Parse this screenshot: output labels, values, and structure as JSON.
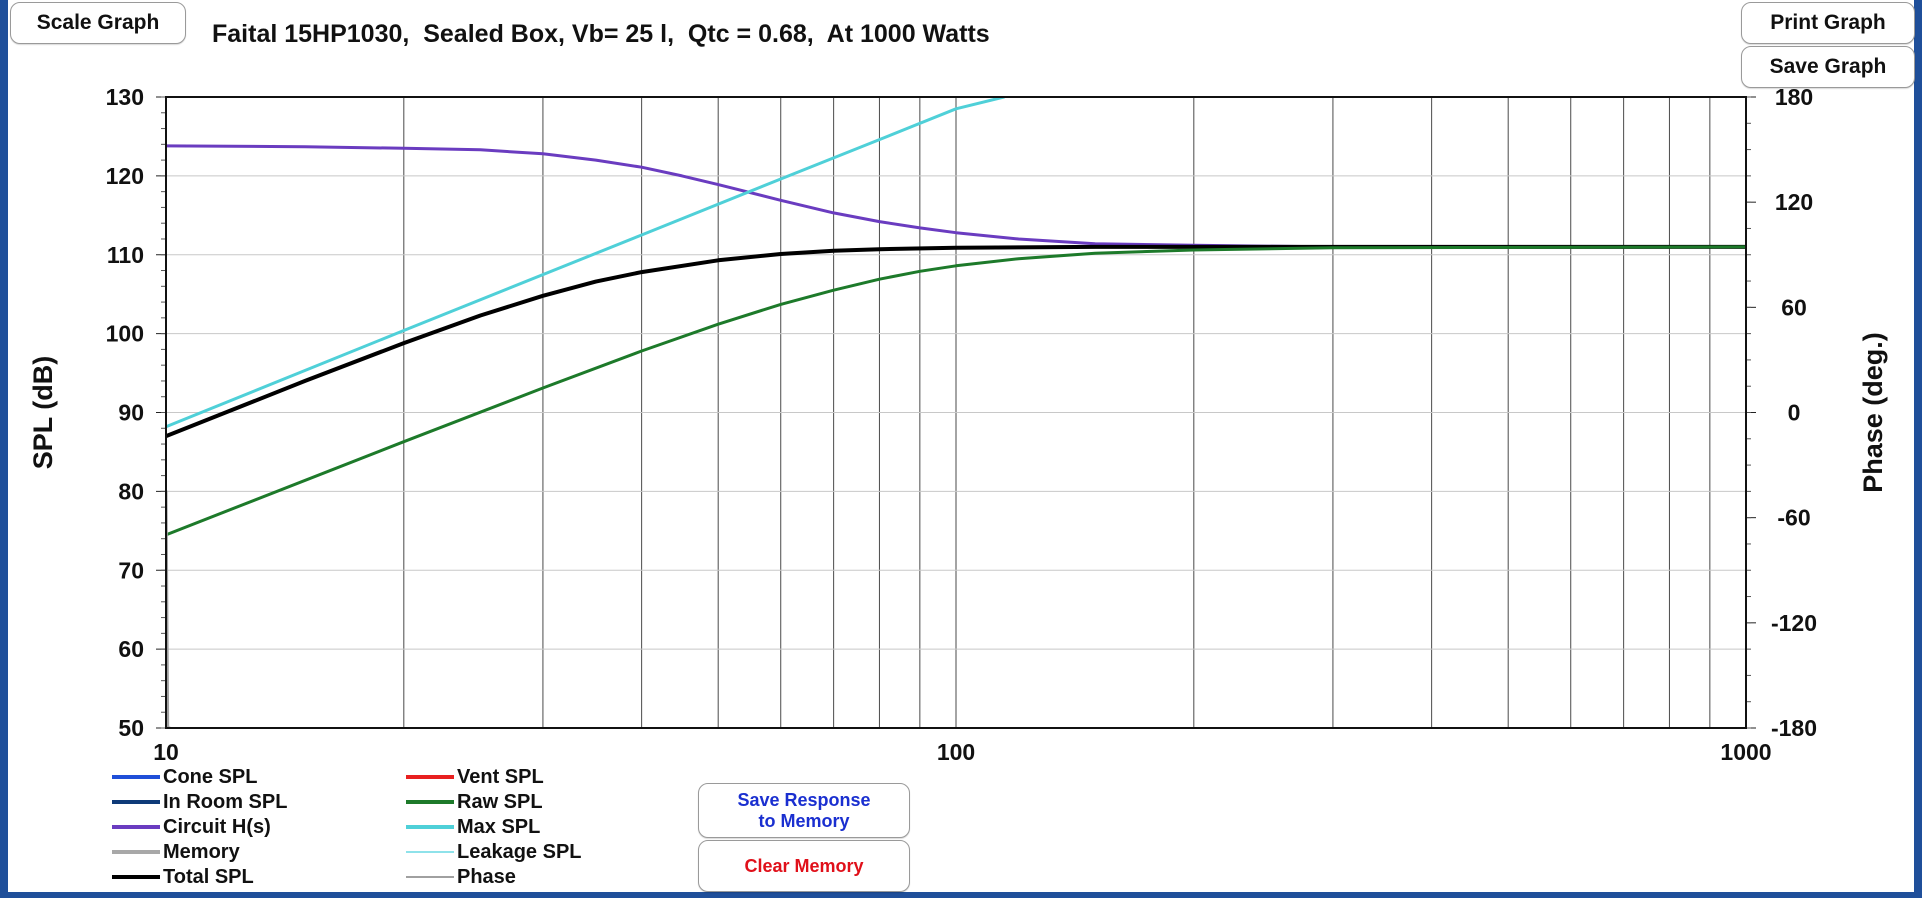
{
  "toolbar": {
    "scale_label": "Scale Graph",
    "print_label": "Print Graph",
    "save_label": "Save Graph",
    "save_response_line1": "Save Response",
    "save_response_line2": "to Memory",
    "clear_memory_label": "Clear Memory"
  },
  "chart_data": {
    "type": "line",
    "title": "Faital 15HP1030,  Sealed Box, Vb= 25 l,  Qtc = 0.68,  At 1000 Watts",
    "ylabel": "SPL (dB)",
    "y2label": "Phase (deg.)",
    "xscale": "log",
    "xlim": [
      10,
      1000
    ],
    "ylim": [
      50,
      130
    ],
    "y2lim": [
      -180,
      180
    ],
    "xticks": [
      {
        "value": 10,
        "label": "10"
      },
      {
        "value": 100,
        "label": "100"
      },
      {
        "value": 1000,
        "label": "1000"
      }
    ],
    "yticks": [
      {
        "value": 130,
        "label": "130"
      },
      {
        "value": 120,
        "label": "120"
      },
      {
        "value": 110,
        "label": "110"
      },
      {
        "value": 100,
        "label": "100"
      },
      {
        "value": 90,
        "label": "90"
      },
      {
        "value": 80,
        "label": "80"
      },
      {
        "value": 70,
        "label": "70"
      },
      {
        "value": 60,
        "label": "60"
      },
      {
        "value": 50,
        "label": "50"
      }
    ],
    "y2ticks": [
      {
        "value": 180,
        "label": "180"
      },
      {
        "value": 120,
        "label": "120"
      },
      {
        "value": 60,
        "label": "60"
      },
      {
        "value": 0,
        "label": "0"
      },
      {
        "value": -60,
        "label": "-60"
      },
      {
        "value": -120,
        "label": "-120"
      },
      {
        "value": -180,
        "label": "-180"
      }
    ],
    "grid": true,
    "legend_position": "bottom-left",
    "legend": [
      {
        "name": "Cone SPL",
        "color": "#1f4fd8",
        "width": 4
      },
      {
        "name": "Vent SPL",
        "color": "#e82020",
        "width": 4
      },
      {
        "name": "In Room SPL",
        "color": "#0e3a78",
        "width": 4
      },
      {
        "name": "Raw SPL",
        "color": "#1d7a2a",
        "width": 4
      },
      {
        "name": "Circuit H(s)",
        "color": "#6a3cc0",
        "width": 4
      },
      {
        "name": "Max SPL",
        "color": "#4fd0d8",
        "width": 4
      },
      {
        "name": "Memory",
        "color": "#a8a8a8",
        "width": 4
      },
      {
        "name": "Leakage SPL",
        "color": "#8ee2ea",
        "width": 2
      },
      {
        "name": "Total SPL",
        "color": "#000000",
        "width": 4
      },
      {
        "name": "Phase",
        "color": "#a0a0a0",
        "width": 2
      }
    ],
    "series": [
      {
        "name": "Circuit H(s)",
        "color": "#6a3cc0",
        "width": 3,
        "x": [
          10,
          15,
          20,
          25,
          30,
          35,
          40,
          45,
          50,
          60,
          70,
          80,
          90,
          100,
          120,
          150,
          200,
          300,
          1000
        ],
        "y": [
          123.8,
          123.7,
          123.5,
          123.3,
          122.8,
          122.0,
          121.1,
          120.0,
          118.9,
          116.9,
          115.3,
          114.2,
          113.4,
          112.8,
          112.0,
          111.4,
          111.2,
          111.0,
          111.0
        ]
      },
      {
        "name": "Max SPL",
        "color": "#4fd0d8",
        "width": 3,
        "x": [
          10,
          20,
          40,
          60,
          80,
          100,
          115
        ],
        "y": [
          88.2,
          100.4,
          112.5,
          119.6,
          124.6,
          128.5,
          130.0
        ]
      },
      {
        "name": "Total SPL",
        "color": "#000000",
        "width": 4,
        "x": [
          10,
          15,
          20,
          25,
          30,
          35,
          40,
          50,
          60,
          70,
          80,
          100,
          150,
          200,
          1000
        ],
        "y": [
          87.0,
          94.0,
          98.8,
          102.3,
          104.8,
          106.6,
          107.8,
          109.3,
          110.1,
          110.5,
          110.7,
          110.9,
          111.0,
          111.0,
          111.0
        ]
      },
      {
        "name": "Raw SPL",
        "color": "#1d7a2a",
        "width": 3,
        "x": [
          10,
          20,
          30,
          40,
          50,
          60,
          70,
          80,
          90,
          100,
          120,
          150,
          200,
          300,
          1000
        ],
        "y": [
          74.5,
          86.3,
          93.1,
          97.8,
          101.2,
          103.7,
          105.5,
          106.9,
          107.9,
          108.6,
          109.5,
          110.2,
          110.6,
          110.9,
          111.0
        ]
      },
      {
        "name": "Phase",
        "color": "#a0a0a0",
        "width": 3,
        "x": [
          10,
          10.05,
          10.1
        ],
        "y": [
          80,
          50,
          50
        ]
      }
    ]
  }
}
